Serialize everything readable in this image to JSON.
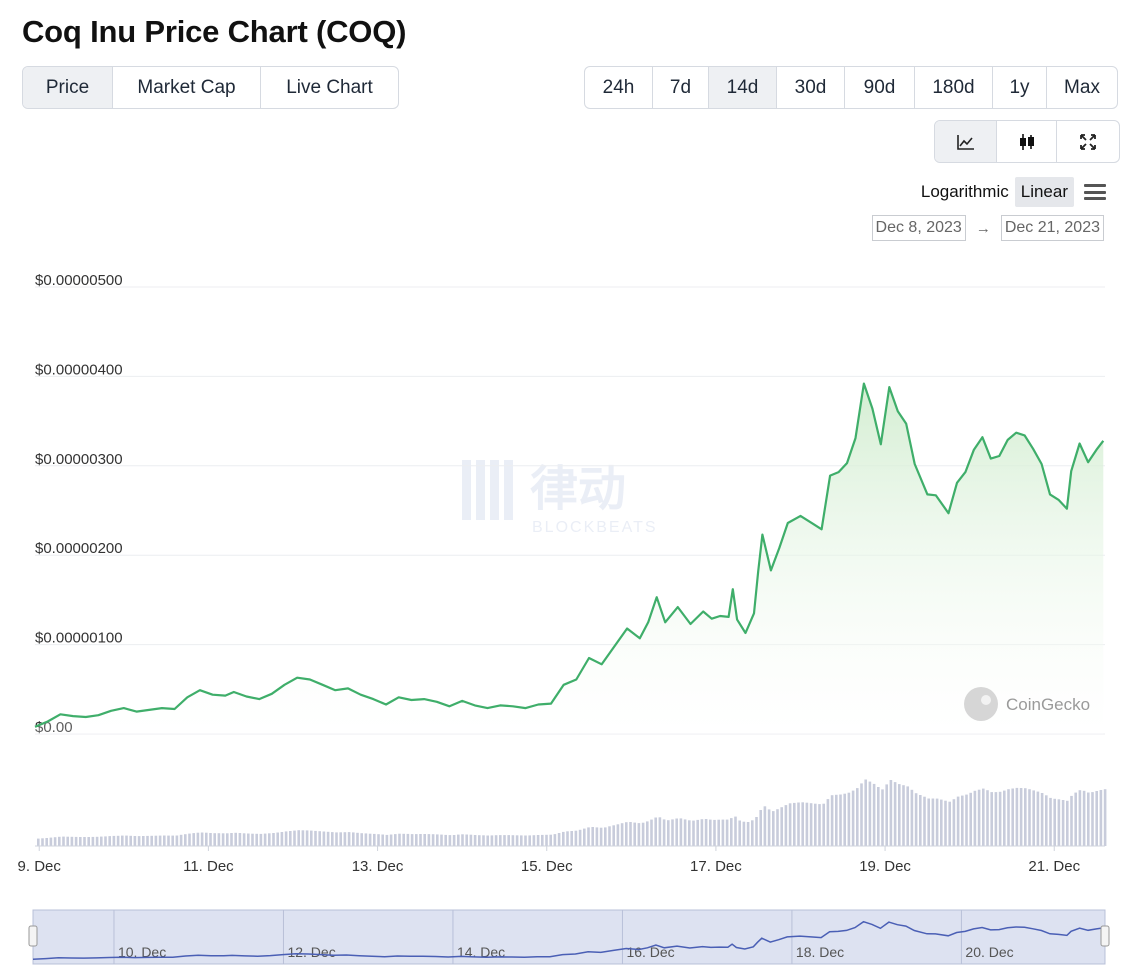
{
  "title": "Coq Inu Price Chart (COQ)",
  "tabs": [
    {
      "label": "Price",
      "active": true
    },
    {
      "label": "Market Cap",
      "active": false
    },
    {
      "label": "Live Chart",
      "active": false
    }
  ],
  "ranges": [
    {
      "label": "24h",
      "active": false
    },
    {
      "label": "7d",
      "active": false
    },
    {
      "label": "14d",
      "active": true
    },
    {
      "label": "30d",
      "active": false
    },
    {
      "label": "90d",
      "active": false
    },
    {
      "label": "180d",
      "active": false
    },
    {
      "label": "1y",
      "active": false
    },
    {
      "label": "Max",
      "active": false
    }
  ],
  "views": [
    {
      "icon": "line-chart-icon",
      "active": true
    },
    {
      "icon": "candlestick-icon",
      "active": false
    },
    {
      "icon": "fullscreen-icon",
      "active": false
    }
  ],
  "scale": {
    "log_label": "Logarithmic",
    "linear_label": "Linear",
    "active": "Linear"
  },
  "date_range": {
    "from": "Dec 8, 2023",
    "arrow": "→",
    "to": "Dec 21, 2023"
  },
  "watermarks": {
    "coingecko": "CoinGecko",
    "blockbeats_cn": "律动",
    "blockbeats_en": "BLOCKBEATS"
  },
  "colors": {
    "line": "#3fae6a",
    "fill": "#dff2df",
    "volume": "#c8ccdb",
    "navigator_bg": "#d9dff0",
    "navigator_line": "#4a5fb5"
  },
  "chart_data": {
    "type": "line",
    "title": "",
    "xlabel": "",
    "ylabel": "",
    "y_unit": "USD",
    "ylim": [
      0,
      5e-06
    ],
    "y_ticks": [
      "$0.00000500",
      "$0.00000400",
      "$0.00000300",
      "$0.00000200",
      "$0.00000100",
      "$0.00"
    ],
    "y_tick_values": [
      5e-06,
      4e-06,
      3e-06,
      2e-06,
      1e-06,
      0
    ],
    "x_ticks": [
      "9. Dec",
      "11. Dec",
      "13. Dec",
      "15. Dec",
      "17. Dec",
      "19. Dec",
      "21. Dec"
    ],
    "xlim": [
      8.95,
      21.6
    ],
    "grid": true,
    "legend": "none",
    "series": [
      {
        "x": [
          8.95,
          9.1,
          9.25,
          9.4,
          9.55,
          9.7,
          9.85,
          10.0,
          10.15,
          10.3,
          10.45,
          10.6,
          10.75,
          10.9,
          11.05,
          11.2,
          11.3,
          11.45,
          11.6,
          11.75,
          11.9,
          12.05,
          12.2,
          12.35,
          12.5,
          12.65,
          12.8,
          12.95,
          13.1,
          13.25,
          13.4,
          13.55,
          13.7,
          13.85,
          14.0,
          14.15,
          14.3,
          14.45,
          14.6,
          14.75,
          14.9,
          15.05,
          15.2,
          15.35,
          15.5,
          15.65,
          15.8,
          15.95,
          16.1,
          16.2,
          16.3,
          16.4,
          16.55,
          16.7,
          16.85,
          16.95,
          17.05,
          17.15,
          17.2,
          17.25,
          17.35,
          17.45,
          17.5,
          17.55,
          17.65,
          17.75,
          17.85,
          18.0,
          18.15,
          18.25,
          18.35,
          18.45,
          18.55,
          18.65,
          18.75,
          18.85,
          18.95,
          19.05,
          19.15,
          19.25,
          19.35,
          19.5,
          19.6,
          19.75,
          19.85,
          19.95,
          20.05,
          20.15,
          20.25,
          20.35,
          20.45,
          20.55,
          20.65,
          20.75,
          20.85,
          20.95,
          21.05,
          21.15,
          21.2,
          21.3,
          21.4,
          21.5,
          21.58
        ],
        "values": [
          8e-08,
          1.4e-07,
          2.2e-07,
          2e-07,
          1.9e-07,
          2.1e-07,
          2.6e-07,
          2.9e-07,
          2.5e-07,
          2.7e-07,
          2.9e-07,
          2.8e-07,
          4.1e-07,
          4.9e-07,
          4.4e-07,
          4.3e-07,
          4.7e-07,
          4.2e-07,
          3.9e-07,
          4.5e-07,
          5.5e-07,
          6.3e-07,
          6.1e-07,
          5.5e-07,
          4.9e-07,
          5.1e-07,
          4.4e-07,
          3.9e-07,
          3.3e-07,
          4.1e-07,
          3.8e-07,
          3.9e-07,
          3.6e-07,
          3.1e-07,
          3.7e-07,
          3.2e-07,
          2.9e-07,
          3.2e-07,
          3.1e-07,
          2.9e-07,
          3.3e-07,
          3.4e-07,
          5.5e-07,
          6.1e-07,
          8.5e-07,
          7.8e-07,
          9.8e-07,
          1.18e-06,
          1.07e-06,
          1.25e-06,
          1.53e-06,
          1.25e-06,
          1.42e-06,
          1.23e-06,
          1.37e-06,
          1.29e-06,
          1.32e-06,
          1.31e-06,
          1.62e-06,
          1.28e-06,
          1.13e-06,
          1.35e-06,
          1.82e-06,
          2.23e-06,
          1.83e-06,
          2.08e-06,
          2.36e-06,
          2.44e-06,
          2.35e-06,
          2.29e-06,
          2.89e-06,
          2.93e-06,
          3.03e-06,
          3.31e-06,
          3.92e-06,
          3.64e-06,
          3.24e-06,
          3.88e-06,
          3.61e-06,
          3.47e-06,
          3.02e-06,
          2.68e-06,
          2.67e-06,
          2.47e-06,
          2.81e-06,
          2.93e-06,
          3.18e-06,
          3.32e-06,
          3.08e-06,
          3.11e-06,
          3.29e-06,
          3.37e-06,
          3.34e-06,
          3.19e-06,
          3.02e-06,
          2.68e-06,
          2.62e-06,
          2.52e-06,
          2.94e-06,
          3.25e-06,
          3.04e-06,
          3.18e-06,
          3.28e-06
        ]
      }
    ]
  },
  "navigator": {
    "labels": [
      "10. Dec",
      "12. Dec",
      "14. Dec",
      "16. Dec",
      "18. Dec",
      "20. Dec"
    ]
  }
}
